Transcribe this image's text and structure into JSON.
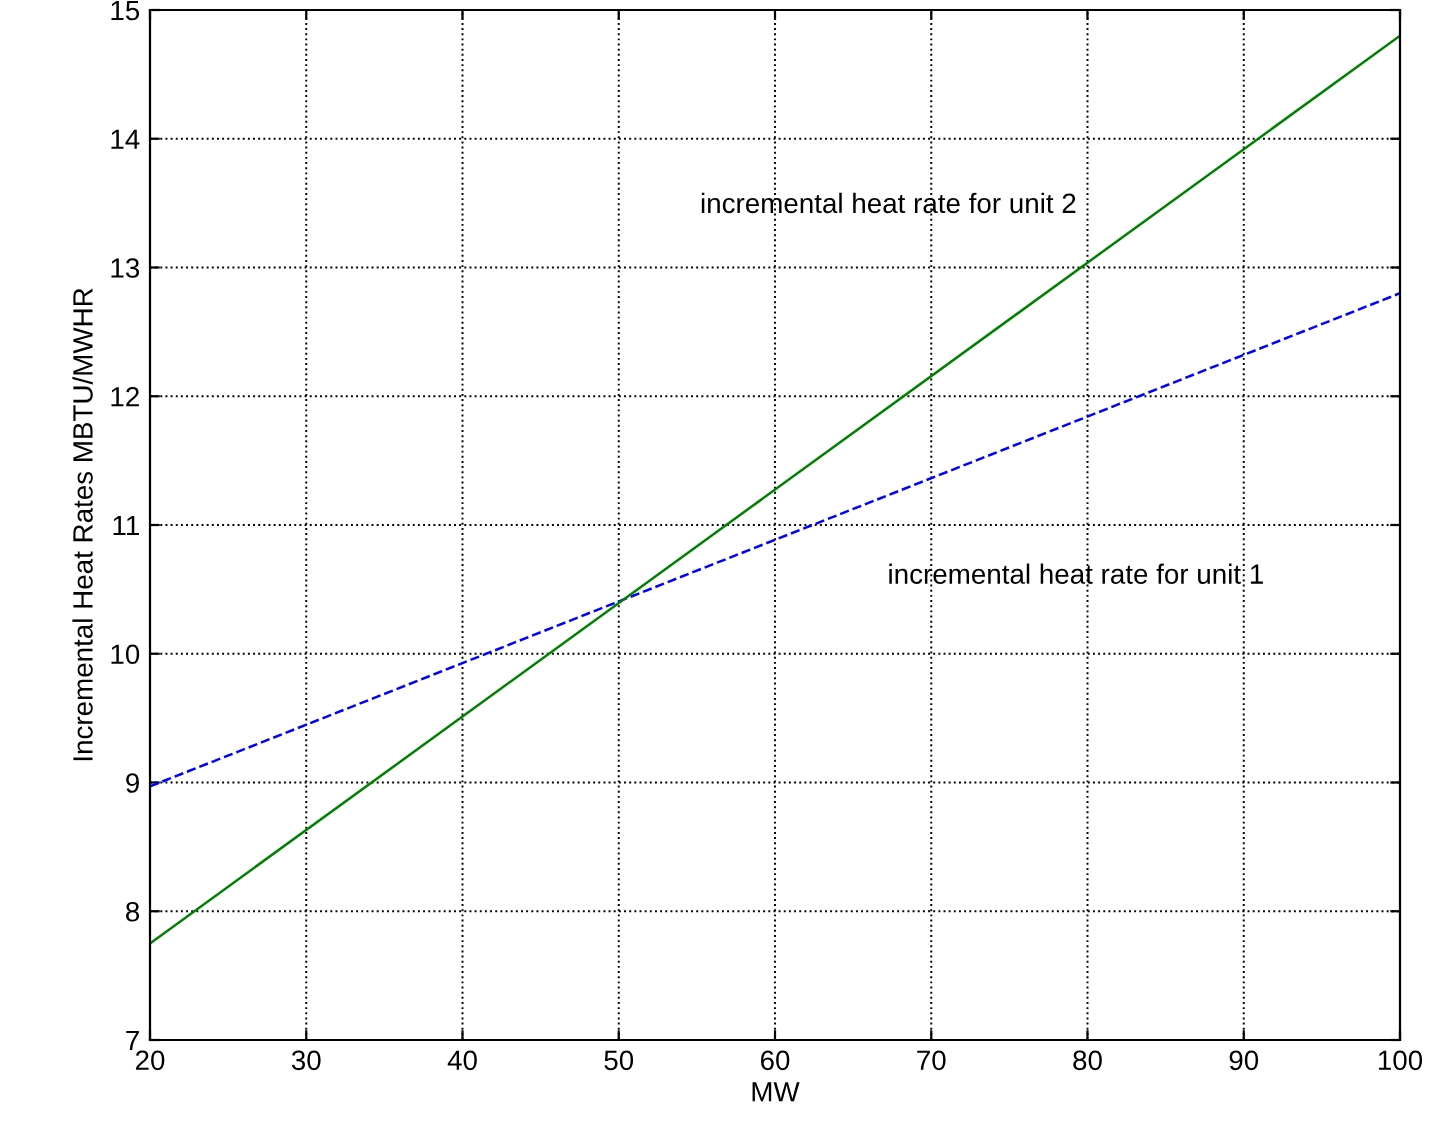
{
  "chart_data": {
    "type": "line",
    "xlabel": "MW",
    "ylabel": "Incremental Heat Rates MBTU/MWHR",
    "xlim": [
      20,
      100
    ],
    "xticks": [
      20,
      30,
      40,
      50,
      60,
      70,
      80,
      90,
      100
    ],
    "ylim": [
      7,
      15
    ],
    "yticks": [
      7,
      8,
      9,
      10,
      11,
      12,
      13,
      14,
      15
    ],
    "grid": true,
    "legend": false,
    "x": [
      20,
      100
    ],
    "series": [
      {
        "name": "incremental heat rate for unit 1",
        "values": [
          8.97,
          12.8
        ],
        "color": "#0000ff",
        "line_style": "dashed"
      },
      {
        "name": "incremental heat rate for unit 2",
        "values": [
          7.75,
          14.8
        ],
        "color": "#008000",
        "line_style": "solid"
      }
    ]
  }
}
